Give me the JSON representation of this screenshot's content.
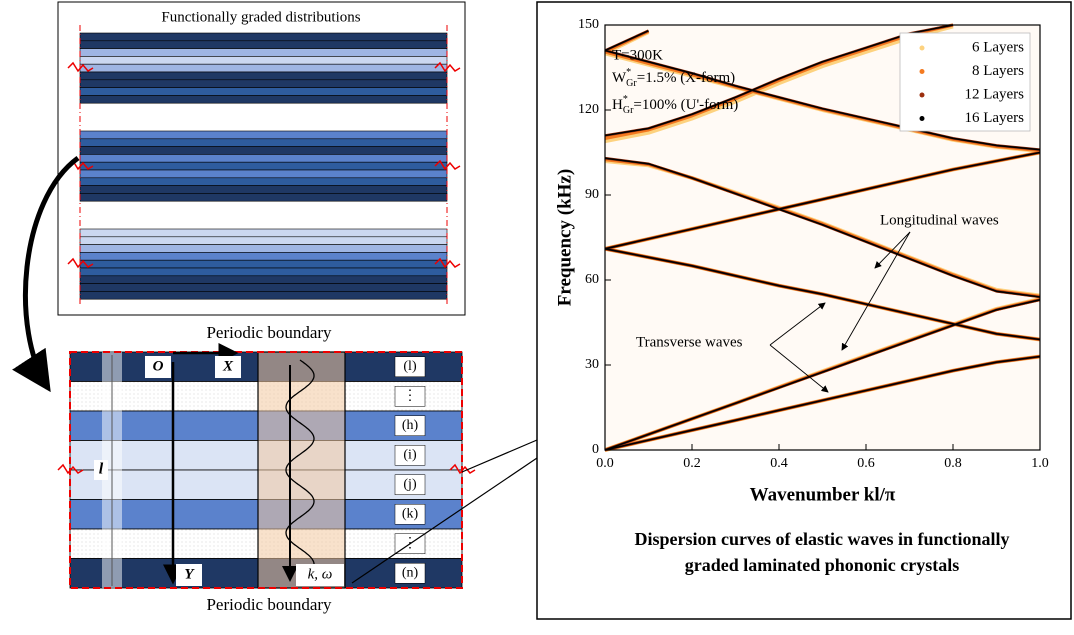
{
  "left_panel": {
    "title": "Functionally graded distributions",
    "top_label": "Periodic boundary",
    "bottom_label": "Periodic boundary",
    "axes": {
      "origin": "O",
      "x": "X",
      "y": "Y",
      "thickness": "l"
    },
    "wave": "k, ω",
    "layers": [
      "(l)",
      "⋮",
      "(h)",
      "(i)",
      "(j)",
      "(k)",
      "⋮",
      "(n)"
    ]
  },
  "chart_data": {
    "type": "line",
    "x_label": "Wavenumber kl/π",
    "y_label": "Frequency (kHz)",
    "caption": [
      "Dispersion curves of elastic waves in functionally",
      "graded laminated phononic crystals"
    ],
    "annotations": {
      "temperature": "T=300K",
      "w": {
        "base": "W",
        "sup": "*",
        "sub": "Gr",
        "rest": "=1.5% (X-form)"
      },
      "h": {
        "base": "H",
        "sup": "*",
        "sub": "Gr",
        "rest": "=100% (U'-form)"
      },
      "longitudinal": "Longitudinal waves",
      "transverse": "Transverse waves"
    },
    "xlim": [
      0,
      1
    ],
    "ylim": [
      0,
      150
    ],
    "xticks": [
      {
        "value": 0,
        "label": "0.0"
      },
      0.2,
      0.4,
      0.6,
      0.8,
      {
        "value": 1,
        "label": "1.0"
      }
    ],
    "yticks": [
      0,
      30,
      60,
      90,
      120,
      150
    ],
    "legend": "upper right",
    "x": [
      0,
      0.1,
      0.2,
      0.3,
      0.4,
      0.5,
      0.6,
      0.7,
      0.8,
      0.9,
      1.0
    ],
    "series": [
      {
        "name": "6 Layers",
        "color": "#fdd27f",
        "values": [
          [
            0,
            3.5,
            7,
            10.5,
            14,
            17.5,
            21,
            24.5,
            28,
            31,
            33
          ],
          [
            0,
            5.5,
            11,
            16.5,
            22.2,
            27.8,
            33.3,
            38.8,
            44.3,
            49.8,
            53.3
          ],
          [
            71,
            68,
            65,
            61.5,
            58,
            55,
            51.5,
            48,
            44.5,
            41,
            39
          ],
          [
            71,
            74.5,
            78,
            81.5,
            85,
            88.5,
            92,
            95.5,
            99,
            102,
            105
          ],
          [
            102,
            100.5,
            96,
            90.8,
            85.5,
            80,
            74,
            68,
            62,
            56.5,
            54.5
          ],
          [
            140,
            136,
            132,
            128,
            124,
            120,
            116.5,
            113,
            109.5,
            107,
            105.5
          ],
          [
            109,
            112,
            117,
            123,
            129.5,
            135.5,
            140.5,
            145.5,
            149.5,
            null,
            null
          ],
          [
            140,
            147.5,
            null,
            null,
            null,
            null,
            null,
            null,
            null,
            null,
            null
          ]
        ]
      },
      {
        "name": "8 Layers",
        "color": "#f47a20",
        "values": [
          [
            0,
            3.5,
            7,
            10.5,
            14,
            17.5,
            21,
            24.5,
            28,
            31,
            33
          ],
          [
            0,
            5.5,
            11,
            16.5,
            22.1,
            27.6,
            33.1,
            38.6,
            44.1,
            49.6,
            53.1
          ],
          [
            71,
            68,
            65,
            61.5,
            58,
            55,
            51.5,
            48,
            44.5,
            41,
            39
          ],
          [
            71,
            74.5,
            78,
            81.5,
            85,
            88.5,
            92,
            95.5,
            99,
            102,
            105
          ],
          [
            102.5,
            100.8,
            96,
            90.6,
            85.2,
            79.8,
            73.8,
            67.8,
            61.8,
            56.2,
            54.2
          ],
          [
            140.5,
            136.5,
            132.5,
            128.2,
            124.2,
            120.2,
            116.7,
            113.2,
            109.7,
            107.2,
            105.7
          ],
          [
            110,
            113,
            118,
            124,
            130.5,
            136.5,
            141.5,
            146.5,
            150,
            null,
            null
          ],
          [
            140.5,
            147.8,
            null,
            null,
            null,
            null,
            null,
            null,
            null,
            null,
            null
          ]
        ]
      },
      {
        "name": "12 Layers",
        "color": "#9c2f0e",
        "values": [
          [
            0,
            3.5,
            7,
            10.5,
            14,
            17.5,
            21,
            24.5,
            28,
            31,
            33
          ],
          [
            0,
            5.5,
            11,
            16.5,
            22,
            27.5,
            33,
            38.5,
            44,
            49.5,
            53
          ],
          [
            71,
            68,
            65,
            61.5,
            58,
            55,
            51.5,
            48,
            44.5,
            41,
            39
          ],
          [
            71,
            74.5,
            78,
            81.5,
            85,
            88.5,
            92,
            95.5,
            99,
            102,
            105
          ],
          [
            103,
            101,
            96,
            90.5,
            85,
            79.5,
            73.5,
            67.5,
            61.5,
            56,
            54
          ],
          [
            141,
            137,
            133,
            128.5,
            124.5,
            120.5,
            117,
            113.5,
            110,
            107.5,
            106
          ],
          [
            111,
            113.5,
            118.5,
            124.5,
            131,
            137,
            142,
            147,
            150,
            null,
            null
          ],
          [
            141,
            148,
            null,
            null,
            null,
            null,
            null,
            null,
            null,
            null,
            null
          ]
        ]
      },
      {
        "name": "16 Layers",
        "color": "#000000",
        "values": [
          [
            0,
            3.5,
            7,
            10.5,
            14,
            17.5,
            21,
            24.5,
            28,
            31,
            33
          ],
          [
            0,
            5.5,
            11,
            16.5,
            22,
            27.5,
            33,
            38.5,
            44,
            49.5,
            53
          ],
          [
            71,
            68,
            65,
            61.5,
            58,
            55,
            51.5,
            48,
            44.5,
            41,
            39
          ],
          [
            71,
            74.5,
            78,
            81.5,
            85,
            88.5,
            92,
            95.5,
            99,
            102,
            105
          ],
          [
            103,
            101,
            96,
            90.5,
            85,
            79.5,
            73.5,
            67.5,
            61.5,
            56,
            54
          ],
          [
            141,
            137,
            133,
            128.5,
            124.5,
            120.5,
            117,
            113.5,
            110,
            107.5,
            106
          ],
          [
            111,
            113.5,
            118.5,
            124.5,
            131,
            137,
            142,
            147,
            150,
            null,
            null
          ],
          [
            141,
            148,
            null,
            null,
            null,
            null,
            null,
            null,
            null,
            null,
            null
          ]
        ]
      }
    ]
  }
}
